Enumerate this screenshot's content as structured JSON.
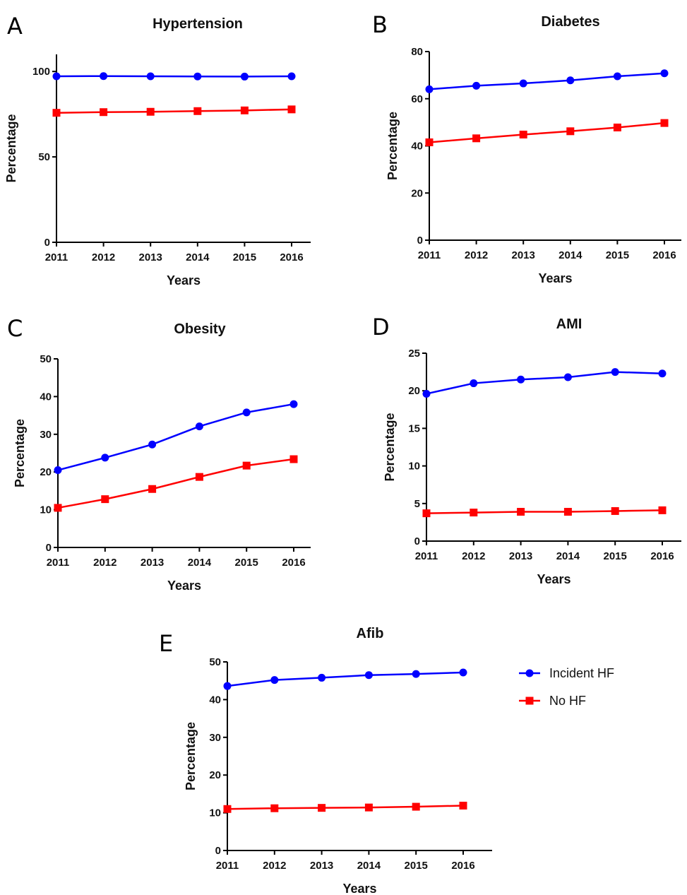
{
  "colors": {
    "incident": "#0000ff",
    "no_hf": "#ff0000",
    "axis": "#000000"
  },
  "legend": {
    "position": "right of panel E",
    "items": [
      {
        "label": "Incident HF",
        "marker": "circle",
        "color": "#0000ff"
      },
      {
        "label": "No HF",
        "marker": "square",
        "color": "#ff0000"
      }
    ]
  },
  "chart_data": [
    {
      "panel": "A",
      "type": "line",
      "title": "Hypertension",
      "xlabel": "Years",
      "ylabel": "Percentage",
      "categories": [
        "2011",
        "2012",
        "2013",
        "2014",
        "2015",
        "2016"
      ],
      "ylim": [
        0,
        110
      ],
      "yticks": [
        0,
        50,
        100
      ],
      "series": [
        {
          "name": "Incident HF",
          "values": [
            97.2,
            97.3,
            97.2,
            97.1,
            97.0,
            97.2
          ]
        },
        {
          "name": "No HF",
          "values": [
            75.8,
            76.2,
            76.4,
            76.8,
            77.2,
            77.8
          ]
        }
      ]
    },
    {
      "panel": "B",
      "type": "line",
      "title": "Diabetes",
      "xlabel": "Years",
      "ylabel": "Percentage",
      "categories": [
        "2011",
        "2012",
        "2013",
        "2014",
        "2015",
        "2016"
      ],
      "ylim": [
        0,
        80
      ],
      "yticks": [
        0,
        20,
        40,
        60,
        80
      ],
      "series": [
        {
          "name": "Incident HF",
          "values": [
            64.0,
            65.5,
            66.5,
            67.8,
            69.5,
            70.8
          ]
        },
        {
          "name": "No HF",
          "values": [
            41.5,
            43.2,
            44.8,
            46.2,
            47.8,
            49.7
          ]
        }
      ]
    },
    {
      "panel": "C",
      "type": "line",
      "title": "Obesity",
      "xlabel": "Years",
      "ylabel": "Percentage",
      "categories": [
        "2011",
        "2012",
        "2013",
        "2014",
        "2015",
        "2016"
      ],
      "ylim": [
        0,
        50
      ],
      "yticks": [
        0,
        10,
        20,
        30,
        40,
        50
      ],
      "series": [
        {
          "name": "Incident HF",
          "values": [
            20.5,
            23.8,
            27.3,
            32.1,
            35.8,
            38.0
          ]
        },
        {
          "name": "No HF",
          "values": [
            10.5,
            12.8,
            15.5,
            18.7,
            21.7,
            23.4
          ]
        }
      ]
    },
    {
      "panel": "D",
      "type": "line",
      "title": "AMI",
      "xlabel": "Years",
      "ylabel": "Percentage",
      "categories": [
        "2011",
        "2012",
        "2013",
        "2014",
        "2015",
        "2016"
      ],
      "ylim": [
        0,
        25
      ],
      "yticks": [
        0,
        5,
        10,
        15,
        20,
        25
      ],
      "series": [
        {
          "name": "Incident HF",
          "values": [
            19.6,
            21.0,
            21.5,
            21.8,
            22.5,
            22.3
          ]
        },
        {
          "name": "No HF",
          "values": [
            3.7,
            3.8,
            3.9,
            3.9,
            4.0,
            4.1
          ]
        }
      ]
    },
    {
      "panel": "E",
      "type": "line",
      "title": "Afib",
      "xlabel": "Years",
      "ylabel": "Percentage",
      "categories": [
        "2011",
        "2012",
        "2013",
        "2014",
        "2015",
        "2016"
      ],
      "ylim": [
        0,
        50
      ],
      "yticks": [
        0,
        10,
        20,
        30,
        40,
        50
      ],
      "series": [
        {
          "name": "Incident HF",
          "values": [
            43.6,
            45.2,
            45.8,
            46.5,
            46.8,
            47.2
          ]
        },
        {
          "name": "No HF",
          "values": [
            11.0,
            11.2,
            11.3,
            11.4,
            11.6,
            11.9
          ]
        }
      ]
    }
  ]
}
